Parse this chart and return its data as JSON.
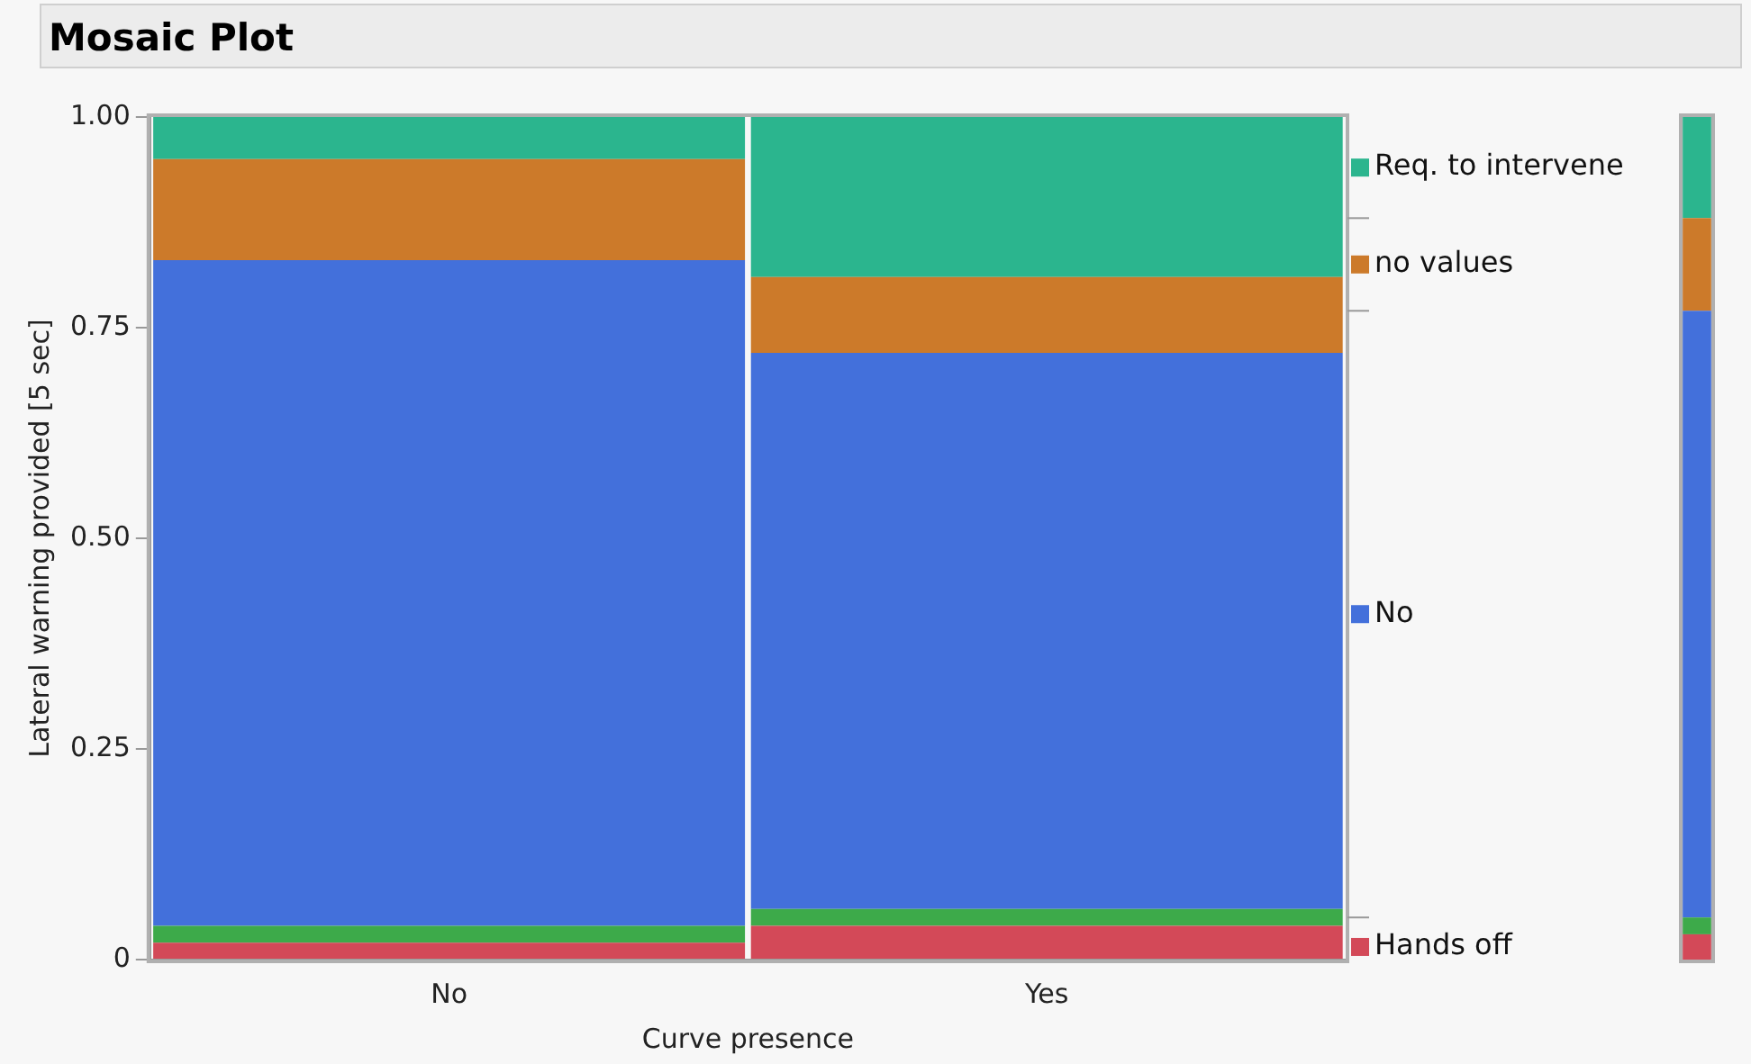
{
  "chart_data": [
    {
      "type": "bar",
      "title": "Mosaic Plot",
      "xlabel": "Curve presence",
      "ylabel": "Lateral warning provided [5 sec]",
      "stacked": true,
      "categories": [
        "No",
        "Yes"
      ],
      "ylim": [
        0,
        1
      ],
      "yticks": [
        0,
        0.25,
        {
          "value": 0.5,
          "label": "0.50"
        },
        0.75,
        {
          "value": 1,
          "label": "1.00"
        }
      ],
      "grid": false,
      "legend": false,
      "series": [
        {
          "color": "#d34958",
          "values": [
            0.02,
            0.04
          ]
        },
        {
          "color": "#3daa4a",
          "values": [
            0.02,
            0.02
          ]
        },
        {
          "color": "#4370db",
          "values": [
            0.79,
            0.66
          ]
        },
        {
          "color": "#cc7a2a",
          "values": [
            0.12,
            0.09
          ]
        },
        {
          "color": "#2bb58e",
          "values": [
            0.05,
            0.19
          ]
        }
      ]
    },
    {
      "type": "bar",
      "stacked": true,
      "categories": [
        null
      ],
      "ylim": [
        0,
        1
      ],
      "tick_labels": false,
      "legend": "left",
      "series": [
        {
          "name": "Hands off",
          "color": "#d34958",
          "values": [
            0.03
          ]
        },
        {
          "color": "#3daa4a",
          "values": [
            0.02
          ]
        },
        {
          "name": "No",
          "color": "#4370db",
          "values": [
            0.72
          ]
        },
        {
          "name": "no values",
          "color": "#cc7a2a",
          "values": [
            0.11
          ]
        },
        {
          "name": "Req. to intervene",
          "color": "#2bb58e",
          "values": [
            0.12
          ]
        }
      ]
    }
  ]
}
